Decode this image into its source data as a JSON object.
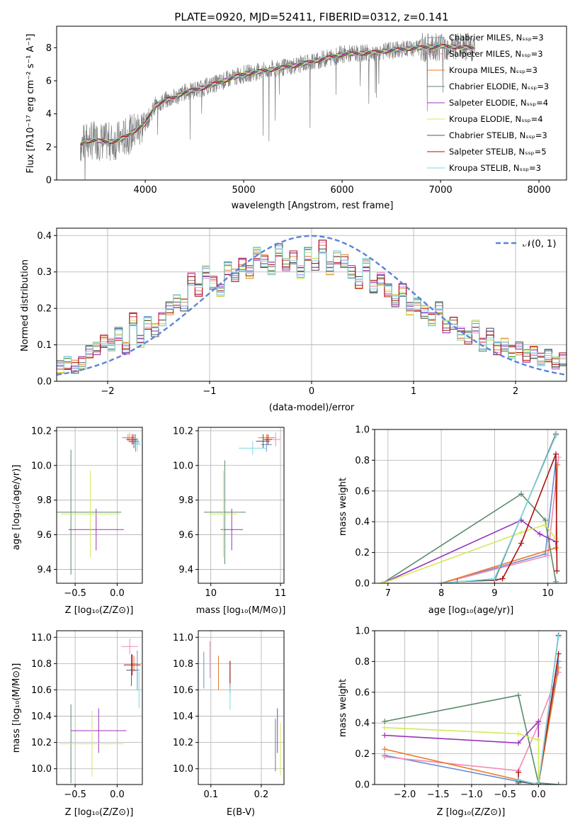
{
  "colors": {
    "chabrier_miles": "#6a8fd4",
    "salpeter_miles": "#f28ab8",
    "kroupa_miles": "#e87a2a",
    "chabrier_elodie": "#5a8a6a",
    "salpeter_elodie": "#9933bb",
    "kroupa_elodie": "#d4ea5a",
    "chabrier_stelib": "#555555",
    "salpeter_stelib": "#aa1111",
    "kroupa_stelib": "#7dd8e0",
    "data_gray": "#808080",
    "normal": "#5b84d6"
  },
  "chart_data": [
    {
      "id": "spec",
      "type": "line",
      "title": "PLATE=0920, MJD=52411, FIBERID=0312, z=0.141",
      "xlabel": "wavelength [Angstrom, rest frame]",
      "ylabel": "Flux [fλ10⁻¹⁷ erg cm⁻² s⁻¹ A⁻¹]",
      "xlim": [
        3100,
        8280
      ],
      "ylim": [
        0,
        9.3
      ],
      "xticks": [
        "4000",
        "5000",
        "6000",
        "7000",
        "8000"
      ],
      "yticks": [
        "0",
        "2",
        "4",
        "6",
        "8"
      ],
      "legend_placement": "top-right",
      "legend": [
        "Chabrier MILES, Nₛₛₚ=3",
        "Salpeter MILES, Nₛₛₚ=3",
        "Kroupa MILES, Nₛₛₚ=3",
        "Chabrier ELODIE, Nₛₛₚ=3",
        "Salpeter ELODIE, Nₛₛₚ=4",
        "Kroupa ELODIE, Nₛₛₚ=4",
        "Chabrier STELIB, Nₛₛₚ=3",
        "Salpeter STELIB, Nₛₛₚ=5",
        "Kroupa STELIB, Nₛₛₚ=3"
      ],
      "continuum": [
        [
          3340,
          2.1
        ],
        [
          3400,
          2.35
        ],
        [
          3500,
          2.4
        ],
        [
          3600,
          2.3
        ],
        [
          3700,
          2.35
        ],
        [
          3800,
          2.6
        ],
        [
          3900,
          3.0
        ],
        [
          4000,
          3.4
        ],
        [
          4100,
          4.5
        ],
        [
          4200,
          4.8
        ],
        [
          4300,
          5.0
        ],
        [
          4400,
          5.3
        ],
        [
          4600,
          5.6
        ],
        [
          4800,
          6.0
        ],
        [
          5000,
          6.4
        ],
        [
          5200,
          6.6
        ],
        [
          5500,
          6.9
        ],
        [
          5800,
          7.3
        ],
        [
          6000,
          7.6
        ],
        [
          6300,
          7.7
        ],
        [
          6600,
          7.9
        ],
        [
          6800,
          8.0
        ],
        [
          7000,
          8.1
        ],
        [
          7300,
          8.0
        ]
      ]
    },
    {
      "id": "hist",
      "type": "line",
      "xlabel": "(data-model)/error",
      "ylabel": "Normed distribution",
      "xlim": [
        -2.5,
        2.5
      ],
      "ylim": [
        0,
        0.42
      ],
      "xticks": [
        "−2",
        "−1",
        "0",
        "1",
        "2"
      ],
      "yticks": [
        "0.0",
        "0.1",
        "0.2",
        "0.3",
        "0.4"
      ],
      "legend": "𝒩(0, 1)",
      "legend_placement": "top-right",
      "base": [
        0.04,
        0.05,
        0.04,
        0.05,
        0.08,
        0.09,
        0.11,
        0.1,
        0.13,
        0.09,
        0.17,
        0.11,
        0.16,
        0.14,
        0.17,
        0.2,
        0.22,
        0.21,
        0.28,
        0.25,
        0.3,
        0.27,
        0.25,
        0.31,
        0.29,
        0.32,
        0.3,
        0.35,
        0.33,
        0.31,
        0.36,
        0.32,
        0.34,
        0.3,
        0.35,
        0.32,
        0.37,
        0.31,
        0.34,
        0.33,
        0.3,
        0.27,
        0.32,
        0.26,
        0.28,
        0.25,
        0.22,
        0.25,
        0.2,
        0.21,
        0.19,
        0.17,
        0.2,
        0.15,
        0.16,
        0.13,
        0.12,
        0.15,
        0.1,
        0.13,
        0.09,
        0.1,
        0.08,
        0.09,
        0.07,
        0.08,
        0.06,
        0.07,
        0.05,
        0.06
      ]
    },
    {
      "id": "zage",
      "type": "scatter",
      "xlabel": "Z [log₁₀(Z/Z⊙)]",
      "ylabel": "age  [log₁₀(age/yr)]",
      "xlim": [
        -0.72,
        0.3
      ],
      "ylim": [
        9.32,
        10.22
      ],
      "xticks": [
        "−0.5",
        "0.0"
      ],
      "xtv": [
        -0.5,
        0
      ],
      "yticks": [
        "9.4",
        "9.6",
        "9.8",
        "10.0",
        "10.2"
      ],
      "ytv": [
        9.4,
        9.6,
        9.8,
        10.0,
        10.2
      ],
      "points": [
        [
          "chabrier_miles",
          0.22,
          10.13,
          0.05,
          0.05
        ],
        [
          "salpeter_miles",
          0.15,
          10.16,
          0.06,
          0.03
        ],
        [
          "kroupa_miles",
          0.13,
          10.16,
          0.07,
          0.02
        ],
        [
          "chabrier_elodie",
          -0.55,
          9.73,
          0.6,
          0.36
        ],
        [
          "salpeter_elodie",
          -0.25,
          9.63,
          0.33,
          0.12
        ],
        [
          "kroupa_elodie",
          -0.32,
          9.72,
          0.35,
          0.25
        ],
        [
          "chabrier_stelib",
          0.2,
          10.14,
          0.06,
          0.04
        ],
        [
          "salpeter_stelib",
          0.18,
          10.15,
          0.07,
          0.03
        ],
        [
          "kroupa_stelib",
          0.24,
          10.12,
          0.04,
          0.04
        ]
      ]
    },
    {
      "id": "mage",
      "type": "scatter",
      "xlabel": "mass [log₁₀(M/M⊙)]",
      "ylabel": "",
      "xlim": [
        9.82,
        11.05
      ],
      "ylim": [
        9.32,
        10.22
      ],
      "xticks": [
        "10",
        "11"
      ],
      "xtv": [
        10,
        11
      ],
      "yticks": [
        "9.4",
        "9.6",
        "9.8",
        "10.0",
        "10.2"
      ],
      "ytv": [
        9.4,
        9.6,
        9.8,
        10.0,
        10.2
      ],
      "points": [
        [
          "chabrier_miles",
          10.8,
          10.12,
          0.08,
          0.04
        ],
        [
          "salpeter_miles",
          10.93,
          10.15,
          0.07,
          0.04
        ],
        [
          "kroupa_miles",
          10.8,
          10.16,
          0.12,
          0.02
        ],
        [
          "chabrier_elodie",
          10.2,
          9.73,
          0.3,
          0.3
        ],
        [
          "salpeter_elodie",
          10.3,
          9.63,
          0.16,
          0.12
        ],
        [
          "kroupa_elodie",
          10.18,
          9.72,
          0.2,
          0.25
        ],
        [
          "chabrier_stelib",
          10.75,
          10.14,
          0.1,
          0.04
        ],
        [
          "salpeter_stelib",
          10.82,
          10.15,
          0.06,
          0.03
        ],
        [
          "kroupa_stelib",
          10.6,
          10.1,
          0.2,
          0.04
        ]
      ]
    },
    {
      "id": "agew",
      "type": "line",
      "xlabel": "age  [log₁₀(age/yr)]",
      "ylabel": "mass weight",
      "xlim": [
        6.75,
        10.35
      ],
      "ylim": [
        0,
        1
      ],
      "xticks": [
        "7",
        "8",
        "9",
        "10"
      ],
      "xtv": [
        7,
        8,
        9,
        10
      ],
      "yticks": [
        "0.0",
        "0.2",
        "0.4",
        "0.6",
        "0.8",
        "1.0"
      ],
      "ytv": [
        0,
        0.2,
        0.4,
        0.6,
        0.8,
        1.0
      ],
      "series": [
        {
          "c": "chabrier_miles",
          "x": [
            8.0,
            9.95,
            10.15
          ],
          "y": [
            0.0,
            0.19,
            0.8
          ]
        },
        {
          "c": "salpeter_miles",
          "x": [
            8.0,
            10.0,
            10.2
          ],
          "y": [
            0.0,
            0.18,
            0.82
          ]
        },
        {
          "c": "kroupa_miles",
          "x": [
            8.0,
            10.15,
            10.18
          ],
          "y": [
            0.0,
            0.23,
            0.77
          ]
        },
        {
          "c": "chabrier_elodie",
          "x": [
            6.9,
            9.5,
            9.95,
            10.15
          ],
          "y": [
            0.0,
            0.58,
            0.41,
            0.01
          ]
        },
        {
          "c": "salpeter_elodie",
          "x": [
            6.9,
            9.5,
            9.85,
            10.15
          ],
          "y": [
            0.0,
            0.41,
            0.32,
            0.27
          ]
        },
        {
          "c": "kroupa_elodie",
          "x": [
            6.9,
            9.5,
            9.95,
            10.15
          ],
          "y": [
            0.0,
            0.33,
            0.38,
            0.29
          ]
        },
        {
          "c": "chabrier_stelib",
          "x": [
            8.3,
            9.0,
            10.15
          ],
          "y": [
            0.01,
            0.02,
            0.97
          ]
        },
        {
          "c": "salpeter_stelib",
          "x": [
            9.0,
            9.15,
            9.5,
            10.15,
            10.17
          ],
          "y": [
            0.02,
            0.03,
            0.26,
            0.84,
            0.08
          ]
        },
        {
          "c": "kroupa_stelib",
          "x": [
            8.0,
            9.0,
            10.15
          ],
          "y": [
            0.0,
            0.03,
            0.96
          ]
        }
      ]
    },
    {
      "id": "zmass",
      "type": "scatter",
      "xlabel": "Z [log₁₀(Z/Z⊙)]",
      "ylabel": "mass [log₁₀(M/M⊙)]",
      "xlim": [
        -0.72,
        0.3
      ],
      "ylim": [
        9.88,
        11.05
      ],
      "xticks": [
        "−0.5",
        "0.0"
      ],
      "xtv": [
        -0.5,
        0
      ],
      "yticks": [
        "10.0",
        "10.2",
        "10.4",
        "10.6",
        "10.8",
        "11.0"
      ],
      "ytv": [
        10,
        10.2,
        10.4,
        10.6,
        10.8,
        11.0
      ],
      "points": [
        [
          "chabrier_miles",
          0.24,
          10.75,
          0.03,
          0.15
        ],
        [
          "salpeter_miles",
          0.15,
          10.93,
          0.1,
          0.06
        ],
        [
          "kroupa_miles",
          0.2,
          10.8,
          0.04,
          0.06
        ],
        [
          "chabrier_elodie",
          -0.55,
          10.19,
          0.13,
          0.3
        ],
        [
          "salpeter_elodie",
          -0.22,
          10.29,
          0.33,
          0.17
        ],
        [
          "kroupa_elodie",
          -0.3,
          10.19,
          0.38,
          0.25
        ],
        [
          "chabrier_stelib",
          0.17,
          10.75,
          0.06,
          0.12
        ],
        [
          "salpeter_stelib",
          0.18,
          10.79,
          0.1,
          0.08
        ],
        [
          "kroupa_stelib",
          0.26,
          10.6,
          0.03,
          0.14
        ]
      ]
    },
    {
      "id": "ebv",
      "type": "scatter",
      "xlabel": "E(B-V)",
      "ylabel": "",
      "xlim": [
        0.075,
        0.245
      ],
      "ylim": [
        9.88,
        11.05
      ],
      "xticks": [
        "0.1",
        "0.2"
      ],
      "xtv": [
        0.1,
        0.2
      ],
      "yticks": [
        "10.0",
        "10.2",
        "10.4",
        "10.6",
        "10.8",
        "11.0"
      ],
      "ytv": [
        10,
        10.2,
        10.4,
        10.6,
        10.8,
        11.0
      ],
      "points": [
        [
          "chabrier_miles",
          0.086,
          10.75,
          0,
          0.14
        ],
        [
          "salpeter_miles",
          0.098,
          10.83,
          0,
          0.14
        ],
        [
          "kroupa_miles",
          0.115,
          10.73,
          0,
          0.13
        ],
        [
          "chabrier_elodie",
          0.228,
          10.18,
          0,
          0.2
        ],
        [
          "salpeter_elodie",
          0.232,
          10.29,
          0,
          0.17
        ],
        [
          "kroupa_elodie",
          0.238,
          10.15,
          0,
          0.2
        ],
        [
          "chabrier_stelib",
          0.138,
          10.7,
          0,
          0.12
        ],
        [
          "salpeter_stelib",
          0.138,
          10.72,
          0,
          0.1
        ],
        [
          "kroupa_stelib",
          0.138,
          10.55,
          0,
          0.1
        ]
      ]
    },
    {
      "id": "zw",
      "type": "line",
      "xlabel": "Z [log₁₀(Z/Z⊙)]",
      "ylabel": "mass weight",
      "xlim": [
        -2.45,
        0.42
      ],
      "ylim": [
        0,
        1
      ],
      "xticks": [
        "−2.0",
        "−1.5",
        "−1.0",
        "−0.5",
        "0.0"
      ],
      "xtv": [
        -2,
        -1.5,
        -1,
        -0.5,
        0
      ],
      "yticks": [
        "0.0",
        "0.2",
        "0.4",
        "0.6",
        "0.8",
        "1.0"
      ],
      "ytv": [
        0,
        0.2,
        0.4,
        0.6,
        0.8,
        1.0
      ],
      "series": [
        {
          "c": "chabrier_miles",
          "x": [
            -2.3,
            -0.3,
            0.0,
            0.3
          ],
          "y": [
            0.19,
            0.02,
            0.0,
            0.8
          ]
        },
        {
          "c": "salpeter_miles",
          "x": [
            -2.3,
            -0.3,
            0.0,
            0.3
          ],
          "y": [
            0.18,
            0.09,
            0.39,
            0.73
          ]
        },
        {
          "c": "kroupa_miles",
          "x": [
            -2.3,
            -0.3,
            0.0,
            0.3
          ],
          "y": [
            0.23,
            0.03,
            0.0,
            0.76
          ]
        },
        {
          "c": "chabrier_elodie",
          "x": [
            -2.3,
            -0.3,
            0.0,
            0.3
          ],
          "y": [
            0.41,
            0.58,
            0.01,
            0.0
          ]
        },
        {
          "c": "salpeter_elodie",
          "x": [
            -2.3,
            -0.3,
            0.0,
            0.0
          ],
          "y": [
            0.32,
            0.27,
            0.41,
            0.0
          ]
        },
        {
          "c": "kroupa_elodie",
          "x": [
            -2.3,
            -0.3,
            0.0,
            0.0
          ],
          "y": [
            0.37,
            0.33,
            0.29,
            0.0
          ]
        },
        {
          "c": "chabrier_stelib",
          "x": [
            -0.3,
            -0.3,
            0.0,
            0.3
          ],
          "y": [
            0.01,
            0.02,
            0.0,
            0.97
          ]
        },
        {
          "c": "salpeter_stelib",
          "x": [
            -0.3,
            -0.3,
            0.0,
            0.3
          ],
          "y": [
            0.08,
            0.03,
            0.0,
            0.85
          ]
        },
        {
          "c": "kroupa_stelib",
          "x": [
            -0.3,
            0.0,
            0.3
          ],
          "y": [
            0.03,
            0.0,
            0.96
          ]
        }
      ]
    }
  ]
}
